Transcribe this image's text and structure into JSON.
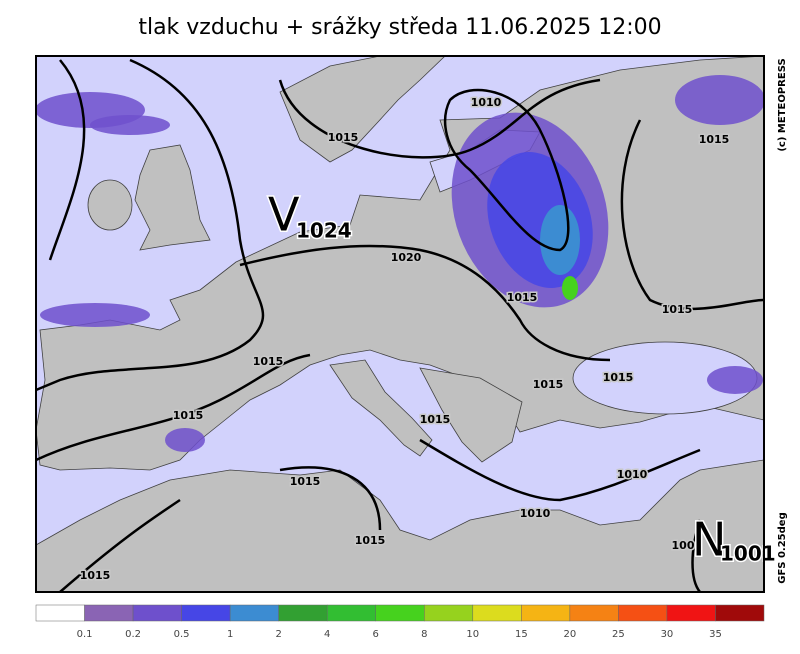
{
  "header": {
    "title": "tlak vzduchu + srážky  středa 11.06.2025 12:00"
  },
  "credits": {
    "copyright": "(c) METEOPRESS",
    "model": "GFS 0.25deg"
  },
  "pressure_centers": [
    {
      "letter": "V",
      "value": "1024"
    },
    {
      "letter": "N",
      "value": "1001"
    }
  ],
  "isobar_labels": [
    "1010",
    "1015",
    "1015",
    "1020",
    "1015",
    "1015",
    "1015",
    "1015",
    "1015",
    "1015",
    "1015",
    "1010",
    "1015",
    "1010",
    "1015",
    "1015",
    "100"
  ],
  "legend": {
    "colors": [
      "#ffffff",
      "#8a64b4",
      "#6e50cc",
      "#4646e6",
      "#3c8cd2",
      "#32a032",
      "#32be32",
      "#46d21e",
      "#96d21e",
      "#dcdc1e",
      "#f5b414",
      "#f58214",
      "#f55014",
      "#f01414",
      "#a00a0a"
    ],
    "labels": [
      "0.1",
      "0.2",
      "0.5",
      "1",
      "2",
      "4",
      "6",
      "8",
      "10",
      "15",
      "20",
      "25",
      "30",
      "35"
    ]
  }
}
